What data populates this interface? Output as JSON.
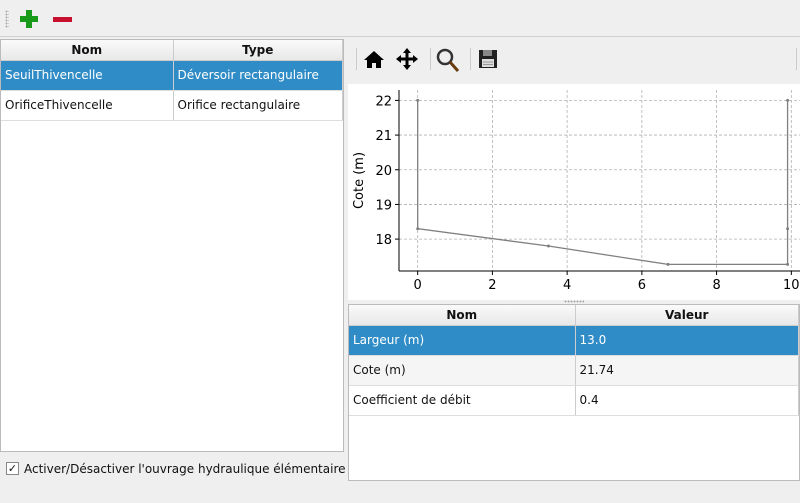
{
  "toolbar": {
    "add_icon": "plus-icon",
    "remove_icon": "minus-icon"
  },
  "structures_table": {
    "headers": [
      "Nom",
      "Type"
    ],
    "rows": [
      [
        "SeuilThivencelle",
        "Déversoir rectangulaire"
      ],
      [
        "OrificeThivencelle",
        "Orifice rectangulaire"
      ]
    ],
    "selected_row": 0
  },
  "enable_checkbox": {
    "label": "Activer/Désactiver l'ouvrage hydraulique élémentaire",
    "checked": true,
    "mark": "✓"
  },
  "plot_toolbar": {
    "icons": [
      "home-icon",
      "pan-icon",
      "zoom-icon",
      "save-icon"
    ]
  },
  "params_table": {
    "headers": [
      "Nom",
      "Valeur"
    ],
    "rows": [
      [
        "Largeur (m)",
        "13.0"
      ],
      [
        "Cote (m)",
        "21.74"
      ],
      [
        "Coefficient de débit",
        "0.4"
      ]
    ],
    "selected_row": 0
  },
  "chart_data": {
    "type": "line",
    "title": "",
    "xlabel": "",
    "ylabel": "Cote (m)",
    "xlim": [
      -0.5,
      10.5
    ],
    "ylim": [
      17.08,
      22.3
    ],
    "xticks": [
      0,
      2,
      4,
      6,
      8,
      10
    ],
    "yticks": [
      18,
      19,
      20,
      21,
      22
    ],
    "grid": true,
    "color": "#808080",
    "x": [
      0,
      0,
      3.5,
      6.7,
      9.9,
      9.9,
      9.9
    ],
    "y": [
      22,
      18.3,
      17.8,
      17.27,
      17.27,
      18.3,
      22
    ]
  }
}
